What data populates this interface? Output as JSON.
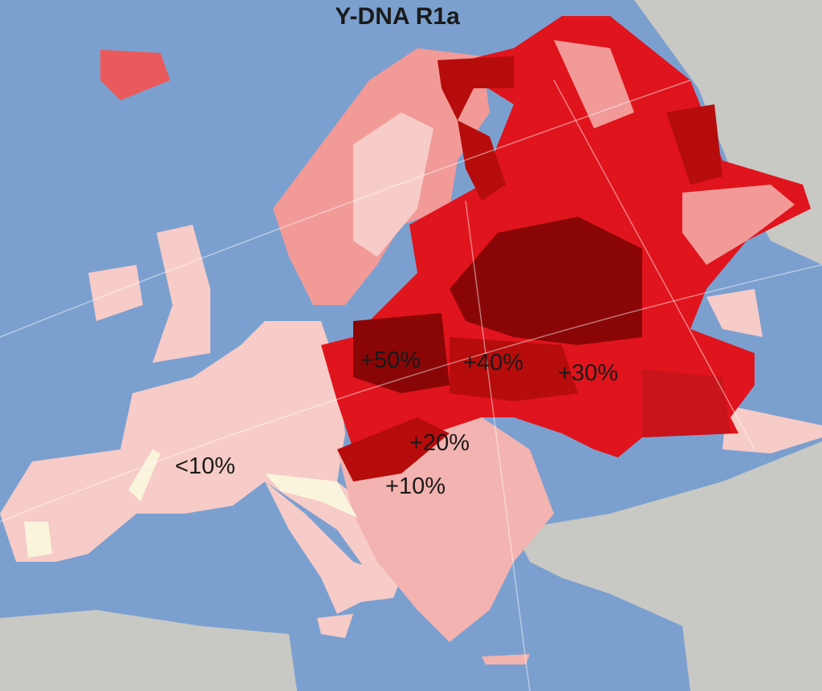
{
  "title": "Y-DNA R1a",
  "labels": {
    "p50": "+50%",
    "p40": "+40%",
    "p30": "+30%",
    "p20": "+20%",
    "p10": "+10%",
    "lt10": "<10%"
  },
  "colors": {
    "sea": "#7ba0cf",
    "other_land": "#c8c8c4",
    "lowest": "#f7cbc7",
    "low": "#f19a98",
    "medium": "#ea5a5c",
    "high": "#e0141c",
    "very_high": "#b60c0c",
    "highest": "#8a0606",
    "absent": "#fbf4dc"
  }
}
